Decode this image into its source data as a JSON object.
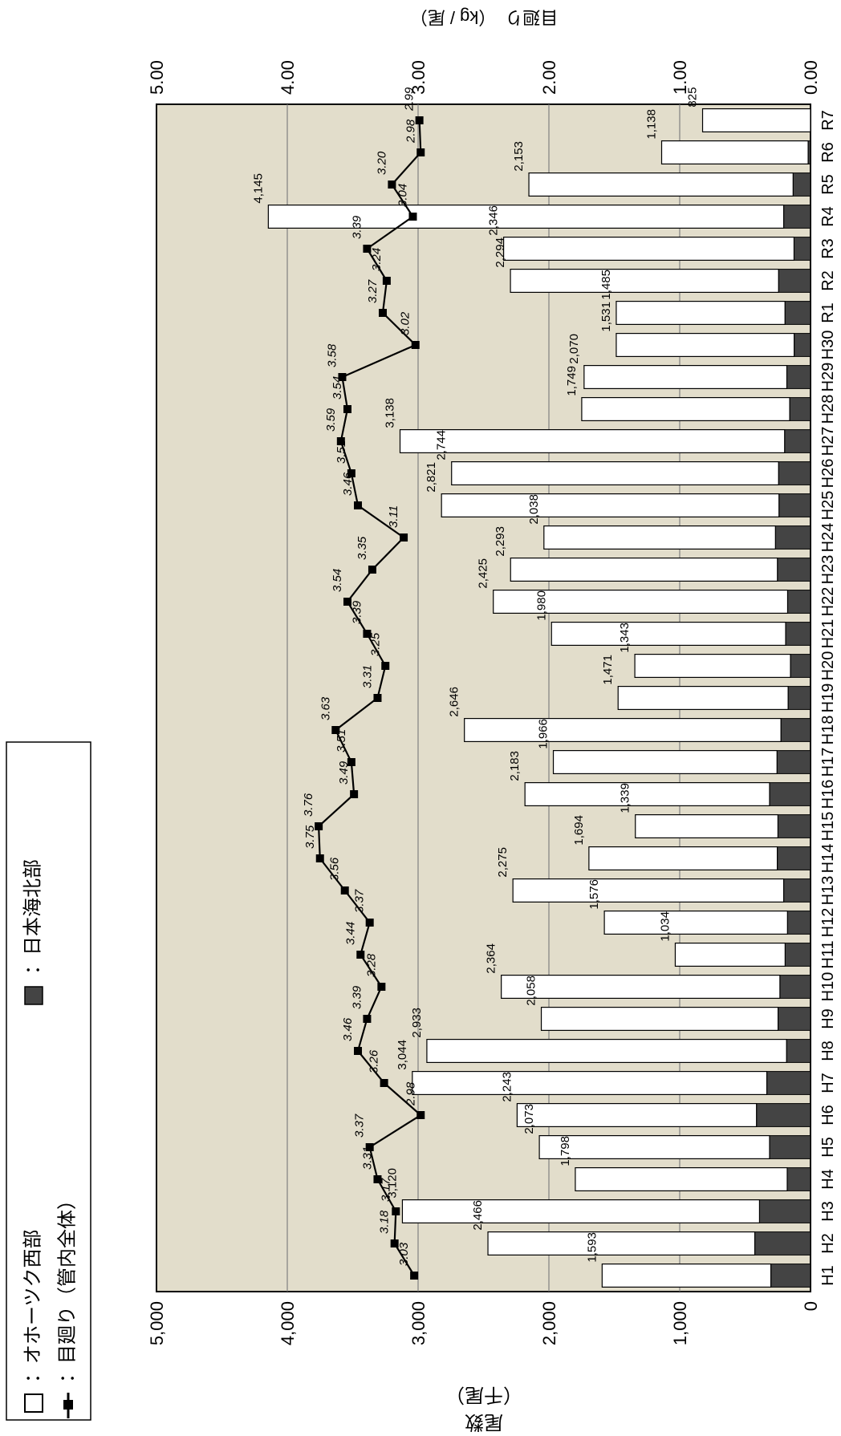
{
  "chart_data": {
    "type": "bar",
    "orientation": "rotated-90-cw",
    "categories": [
      "H1",
      "H2",
      "H3",
      "H4",
      "H5",
      "H6",
      "H7",
      "H8",
      "H9",
      "H10",
      "H11",
      "H12",
      "H13",
      "H14",
      "H15",
      "H16",
      "H17",
      "H18",
      "H19",
      "H20",
      "H21",
      "H22",
      "H23",
      "H24",
      "H25",
      "H26",
      "H27",
      "H28",
      "H29",
      "H30",
      "R1",
      "R2",
      "R3",
      "R4",
      "R5",
      "R6",
      "R7"
    ],
    "left_axis": {
      "label_lines": [
        "尾数",
        "（千尾）"
      ],
      "ticks": [
        "0",
        "1,000",
        "2,000",
        "3,000",
        "4,000",
        "5,000"
      ],
      "ylim": [
        0,
        5000
      ]
    },
    "right_axis": {
      "label": "目廻り　（kg / 尾）",
      "ticks": [
        "0.00",
        "1.00",
        "2.00",
        "3.00",
        "4.00",
        "5.00"
      ],
      "ylim": [
        0,
        5
      ]
    },
    "grid": true,
    "legend_placement": "right",
    "legend": {
      "okhotsk": "：オホーツク西部",
      "japan_sea": "：日本海北部",
      "weight": "：目廻り（管内全体）"
    },
    "series": [
      {
        "name": "オホーツク西部",
        "type": "bar-stacked",
        "color": "#ffffff",
        "values": [
          1290,
          2040,
          2730,
          1620,
          1760,
          1830,
          2710,
          2750,
          1810,
          2130,
          840,
          1400,
          2070,
          1440,
          1090,
          1870,
          1710,
          2420,
          1300,
          1190,
          1790,
          2250,
          2040,
          1770,
          2580,
          2500,
          2940,
          1590,
          1550,
          1360,
          1290,
          2050,
          2220,
          3940,
          2020,
          1120,
          825
        ]
      },
      {
        "name": "日本海北部",
        "type": "bar-stacked",
        "color": "#444444",
        "values": [
          303,
          426,
          390,
          178,
          313,
          413,
          334,
          183,
          248,
          234,
          194,
          176,
          205,
          254,
          249,
          313,
          256,
          226,
          171,
          153,
          190,
          175,
          253,
          268,
          241,
          244,
          198,
          159,
          181,
          125,
          195,
          244,
          126,
          205,
          133,
          18,
          0
        ]
      },
      {
        "name": "目廻り（管内全体）",
        "type": "line",
        "axis": "right",
        "color": "#000000",
        "values": [
          3.03,
          3.18,
          3.17,
          3.31,
          3.37,
          2.98,
          3.26,
          3.46,
          3.39,
          3.28,
          3.44,
          3.37,
          3.56,
          3.75,
          3.76,
          3.49,
          3.51,
          3.63,
          3.31,
          3.25,
          3.39,
          3.54,
          3.35,
          3.11,
          3.46,
          3.51,
          3.59,
          3.54,
          3.58,
          3.02,
          3.27,
          3.24,
          3.39,
          3.04,
          3.2,
          2.98,
          2.99
        ],
        "labels": [
          "3.03",
          "3.18",
          "3.17",
          "3.31",
          "3.37",
          "2.98",
          "3.26",
          "3.46",
          "3.39",
          "3.28",
          "3.44",
          "3.37",
          "3.56",
          "3.75",
          "3.76",
          "3.49",
          "3.51",
          "3.63",
          "3.31",
          "3.25",
          "3.39",
          "3.54",
          "3.35",
          "3.11",
          "3.46",
          "3.51",
          "3.59",
          "3.54",
          "3.58",
          "3.02",
          "3.27",
          "3.24",
          "3.39",
          "3.04",
          "3.20",
          "2.98",
          "2.99"
        ]
      }
    ],
    "total_labels": [
      "1,593",
      "2,466",
      "3,120",
      "1,798",
      "2,073",
      "2,243",
      "3,044",
      "2,933",
      "2,058",
      "2,364",
      "1,034",
      "1,576",
      "2,275",
      "1,694",
      "1,339",
      "2,183",
      "1,966",
      "2,646",
      "1,471",
      "1,343",
      "1,980",
      "2,425",
      "2,293",
      "2,038",
      "2,821",
      "2,744",
      "3,138",
      "1,749",
      "2,070",
      "1,531",
      "1,485",
      "2,294",
      "2,346",
      "4,145",
      "2,153",
      "1,138",
      "825"
    ]
  },
  "colors": {
    "plot_background": "#e2ddcb",
    "japan_sea_fill": "#444444",
    "okhotsk_fill": "#ffffff"
  }
}
